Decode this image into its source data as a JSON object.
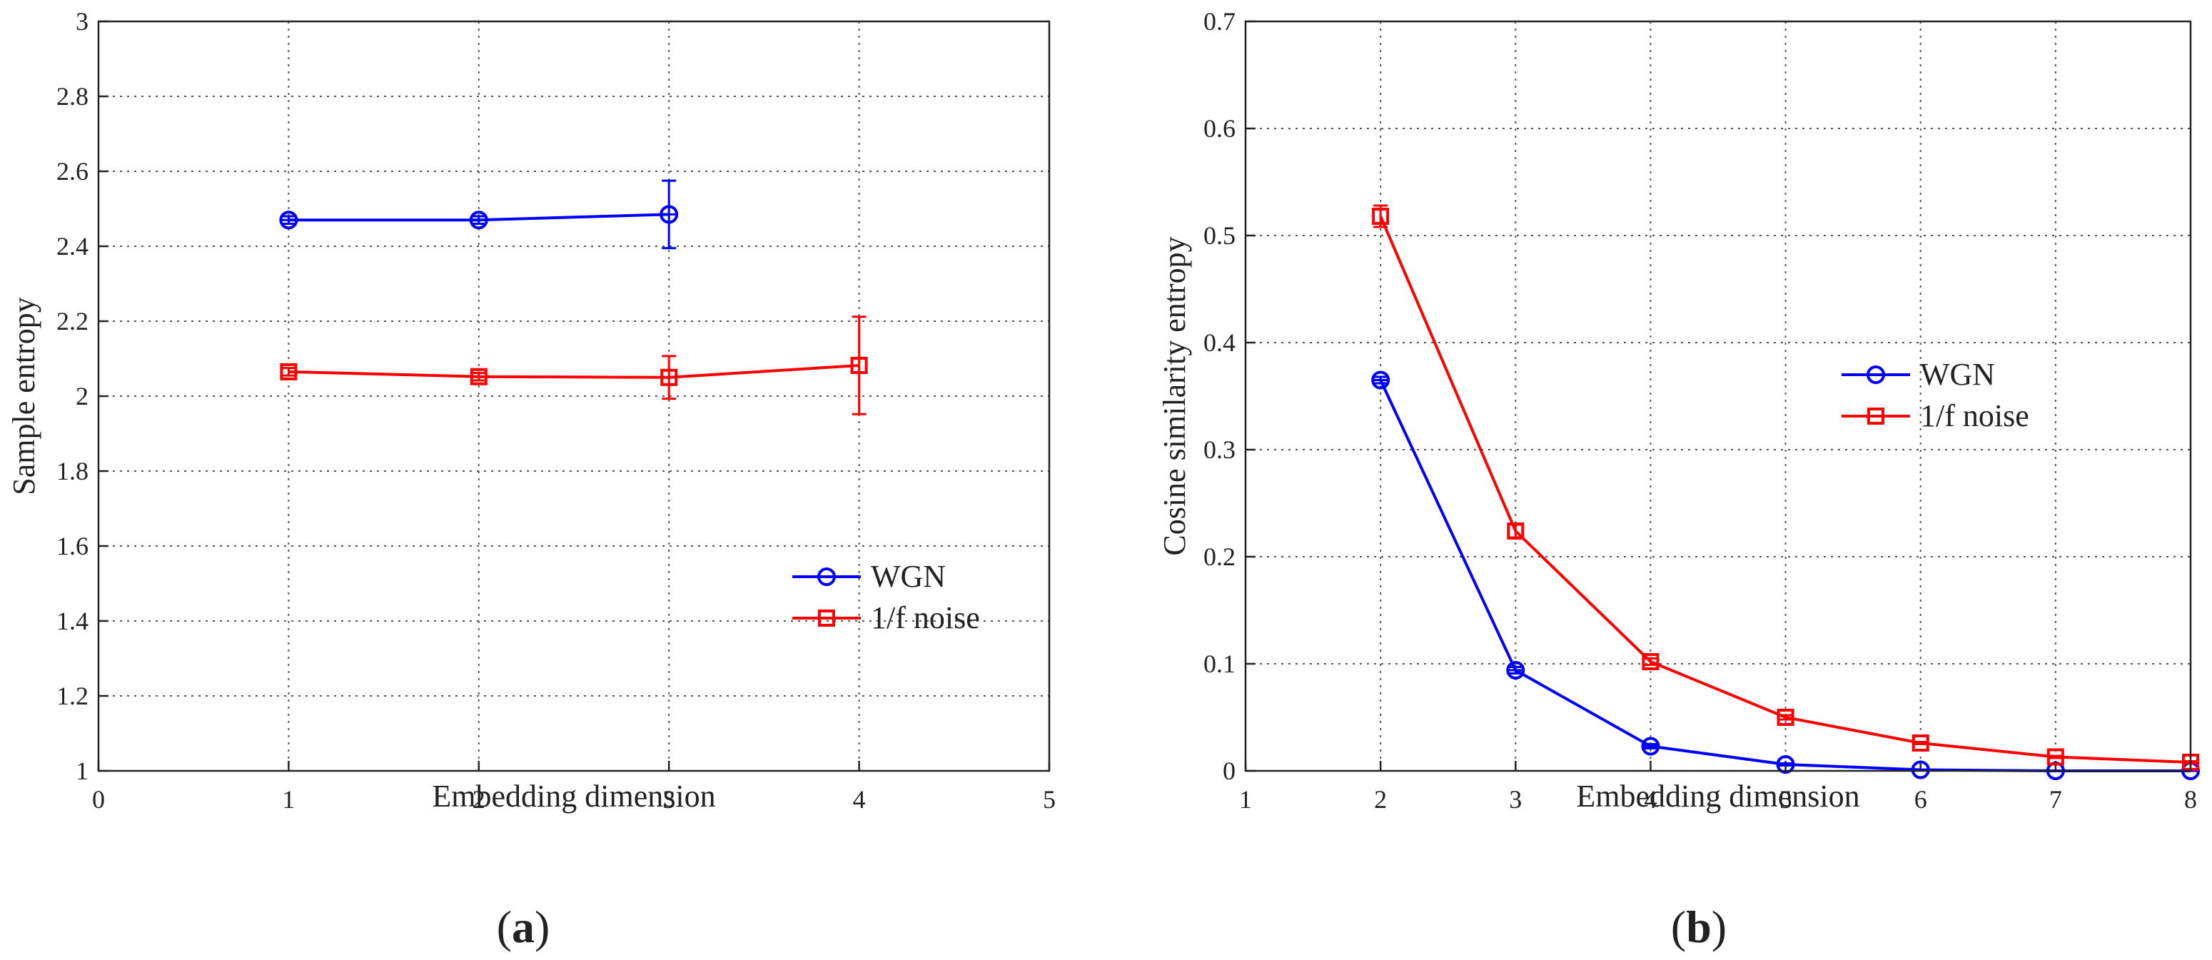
{
  "chart_data": [
    {
      "type": "line",
      "panel_label": "a",
      "xlabel": "Embedding dimension",
      "ylabel": "Sample entropy",
      "xlim": [
        0,
        5
      ],
      "ylim": [
        1,
        3
      ],
      "xticks": [
        "0",
        "1",
        "2",
        "3",
        "4",
        "5"
      ],
      "yticks": [
        "1",
        "1.2",
        "1.4",
        "1.6",
        "1.8",
        "2",
        "2.2",
        "2.4",
        "2.6",
        "2.8",
        "3"
      ],
      "xtick_values": [
        0,
        1,
        2,
        3,
        4,
        5
      ],
      "ytick_values": [
        1,
        1.2,
        1.4,
        1.6,
        1.8,
        2,
        2.2,
        2.4,
        2.6,
        2.8,
        3
      ],
      "grid": true,
      "legend_position": "center-right",
      "series": [
        {
          "name": "WGN",
          "color": "#0000ff",
          "marker": "circle",
          "x": [
            1,
            2,
            3
          ],
          "y": [
            2.47,
            2.47,
            2.485
          ],
          "err": [
            0.01,
            0.01,
            0.09
          ]
        },
        {
          "name": "1/f noise",
          "color": "#ff0000",
          "marker": "square",
          "x": [
            1,
            2,
            3,
            4
          ],
          "y": [
            2.065,
            2.052,
            2.05,
            2.082
          ],
          "err": [
            0.01,
            0.01,
            0.057,
            0.13
          ]
        }
      ]
    },
    {
      "type": "line",
      "panel_label": "b",
      "xlabel": "Embedding dimension",
      "ylabel": "Cosine similarity entropy",
      "xlim": [
        1,
        8
      ],
      "ylim": [
        0,
        0.7
      ],
      "xticks": [
        "1",
        "2",
        "3",
        "4",
        "5",
        "6",
        "7",
        "8"
      ],
      "yticks": [
        "0",
        "0.1",
        "0.2",
        "0.3",
        "0.4",
        "0.5",
        "0.6",
        "0.7"
      ],
      "xtick_values": [
        1,
        2,
        3,
        4,
        5,
        6,
        7,
        8
      ],
      "ytick_values": [
        0,
        0.1,
        0.2,
        0.3,
        0.4,
        0.5,
        0.6,
        0.7
      ],
      "grid": true,
      "legend_position": "center-right",
      "series": [
        {
          "name": "WGN",
          "color": "#0000ff",
          "marker": "circle",
          "x": [
            2,
            3,
            4,
            5,
            6,
            7,
            8
          ],
          "y": [
            0.365,
            0.094,
            0.023,
            0.006,
            0.001,
            0.0,
            0.0
          ],
          "err": [
            0.003,
            0.003,
            0.002,
            0.001,
            0.0,
            0.0,
            0.0
          ]
        },
        {
          "name": "1/f noise",
          "color": "#ff0000",
          "marker": "square",
          "x": [
            2,
            3,
            4,
            5,
            6,
            7,
            8
          ],
          "y": [
            0.518,
            0.224,
            0.102,
            0.05,
            0.026,
            0.013,
            0.008
          ],
          "err": [
            0.01,
            0.006,
            0.003,
            0.002,
            0.001,
            0.001,
            0.001
          ]
        }
      ]
    }
  ]
}
